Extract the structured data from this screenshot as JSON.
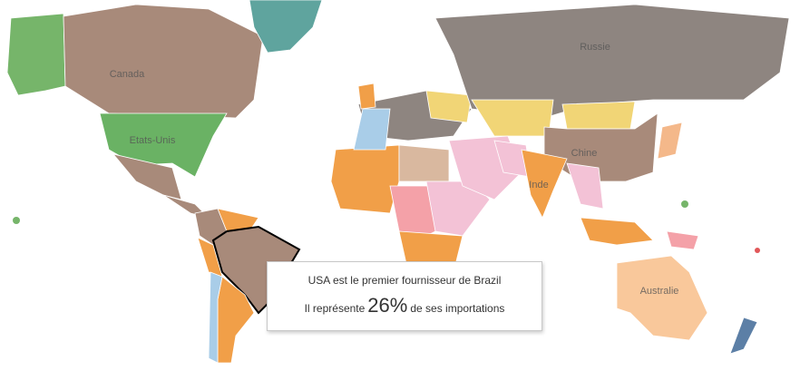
{
  "map": {
    "labels": [
      "Canada",
      "Etats-Unis",
      "Russie",
      "Chine",
      "Inde",
      "Australie"
    ]
  },
  "tooltip": {
    "line1": "USA est le premier fournisseur de Brazil",
    "prefix": "Il représente",
    "share": "26%",
    "suffix": "de ses importations"
  }
}
